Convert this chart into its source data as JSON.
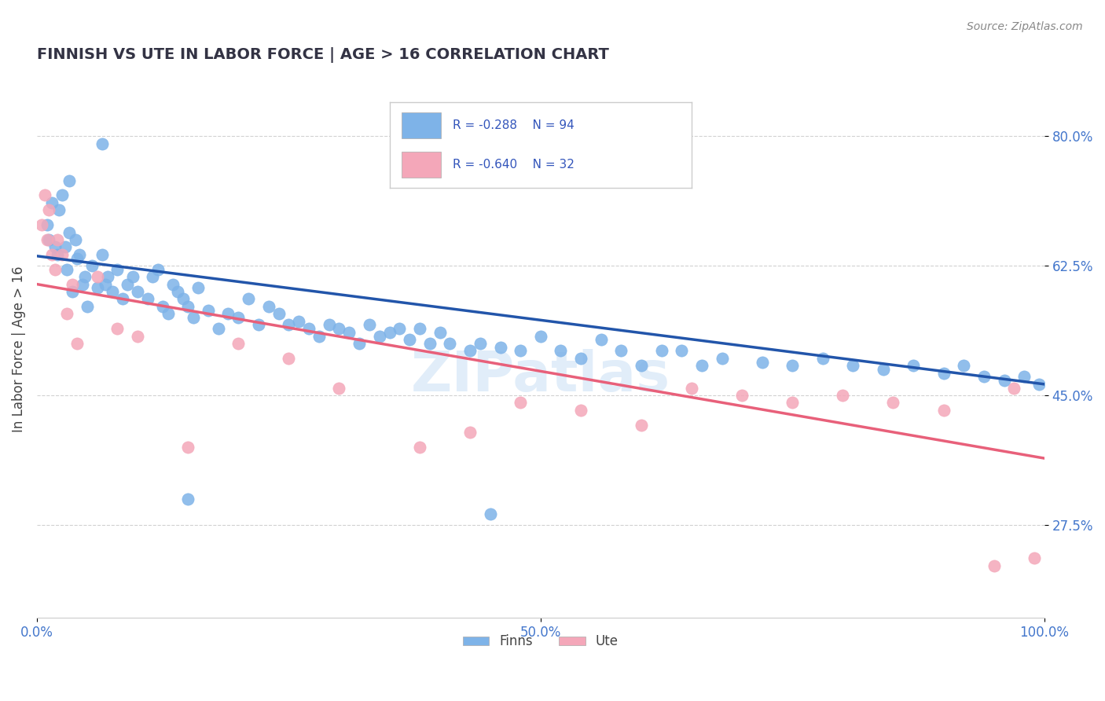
{
  "title": "FINNISH VS UTE IN LABOR FORCE | AGE > 16 CORRELATION CHART",
  "source_text": "Source: ZipAtlas.com",
  "ylabel": "In Labor Force | Age > 16",
  "xlim": [
    0.0,
    1.0
  ],
  "ylim": [
    0.15,
    0.875
  ],
  "yticks": [
    0.275,
    0.45,
    0.625,
    0.8
  ],
  "yticklabels": [
    "27.5%",
    "45.0%",
    "62.5%",
    "80.0%"
  ],
  "blue_color": "#7EB3E8",
  "pink_color": "#F4A7B9",
  "blue_line_color": "#2255AA",
  "pink_line_color": "#E8607A",
  "legend_R_blue": "-0.288",
  "legend_N_blue": "94",
  "legend_R_pink": "-0.640",
  "legend_N_pink": "32",
  "legend_label_blue": "Finns",
  "legend_label_pink": "Ute",
  "background_color": "#FFFFFF",
  "grid_color": "#CCCCCC",
  "title_color": "#333344",
  "axis_label_color": "#4477CC",
  "blue_line_start_y": 0.638,
  "blue_line_end_y": 0.465,
  "pink_line_start_y": 0.6,
  "pink_line_end_y": 0.365,
  "blue_scatter": {
    "x": [
      0.01,
      0.012,
      0.015,
      0.018,
      0.02,
      0.022,
      0.025,
      0.028,
      0.03,
      0.032,
      0.035,
      0.038,
      0.04,
      0.042,
      0.045,
      0.048,
      0.05,
      0.055,
      0.06,
      0.065,
      0.068,
      0.07,
      0.075,
      0.08,
      0.085,
      0.09,
      0.095,
      0.1,
      0.11,
      0.115,
      0.12,
      0.125,
      0.13,
      0.135,
      0.14,
      0.145,
      0.15,
      0.155,
      0.16,
      0.17,
      0.18,
      0.19,
      0.2,
      0.21,
      0.22,
      0.23,
      0.24,
      0.25,
      0.26,
      0.27,
      0.28,
      0.29,
      0.3,
      0.31,
      0.32,
      0.33,
      0.34,
      0.35,
      0.36,
      0.37,
      0.38,
      0.39,
      0.4,
      0.41,
      0.43,
      0.44,
      0.46,
      0.48,
      0.5,
      0.52,
      0.54,
      0.56,
      0.58,
      0.6,
      0.62,
      0.64,
      0.66,
      0.68,
      0.72,
      0.75,
      0.78,
      0.81,
      0.84,
      0.87,
      0.9,
      0.92,
      0.94,
      0.96,
      0.98,
      0.995,
      0.032,
      0.065,
      0.15,
      0.45
    ],
    "y": [
      0.68,
      0.66,
      0.71,
      0.65,
      0.64,
      0.7,
      0.72,
      0.65,
      0.62,
      0.67,
      0.59,
      0.66,
      0.635,
      0.64,
      0.6,
      0.61,
      0.57,
      0.625,
      0.595,
      0.64,
      0.6,
      0.61,
      0.59,
      0.62,
      0.58,
      0.6,
      0.61,
      0.59,
      0.58,
      0.61,
      0.62,
      0.57,
      0.56,
      0.6,
      0.59,
      0.58,
      0.57,
      0.555,
      0.595,
      0.565,
      0.54,
      0.56,
      0.555,
      0.58,
      0.545,
      0.57,
      0.56,
      0.545,
      0.55,
      0.54,
      0.53,
      0.545,
      0.54,
      0.535,
      0.52,
      0.545,
      0.53,
      0.535,
      0.54,
      0.525,
      0.54,
      0.52,
      0.535,
      0.52,
      0.51,
      0.52,
      0.515,
      0.51,
      0.53,
      0.51,
      0.5,
      0.525,
      0.51,
      0.49,
      0.51,
      0.51,
      0.49,
      0.5,
      0.495,
      0.49,
      0.5,
      0.49,
      0.485,
      0.49,
      0.48,
      0.49,
      0.475,
      0.47,
      0.475,
      0.465,
      0.74,
      0.79,
      0.31,
      0.29
    ]
  },
  "pink_scatter": {
    "x": [
      0.005,
      0.008,
      0.01,
      0.012,
      0.015,
      0.018,
      0.02,
      0.025,
      0.03,
      0.035,
      0.04,
      0.06,
      0.08,
      0.1,
      0.15,
      0.2,
      0.25,
      0.3,
      0.38,
      0.43,
      0.48,
      0.54,
      0.6,
      0.65,
      0.7,
      0.75,
      0.8,
      0.85,
      0.9,
      0.95,
      0.97,
      0.99
    ],
    "y": [
      0.68,
      0.72,
      0.66,
      0.7,
      0.64,
      0.62,
      0.66,
      0.64,
      0.56,
      0.6,
      0.52,
      0.61,
      0.54,
      0.53,
      0.38,
      0.52,
      0.5,
      0.46,
      0.38,
      0.4,
      0.44,
      0.43,
      0.41,
      0.46,
      0.45,
      0.44,
      0.45,
      0.44,
      0.43,
      0.22,
      0.46,
      0.23
    ]
  }
}
